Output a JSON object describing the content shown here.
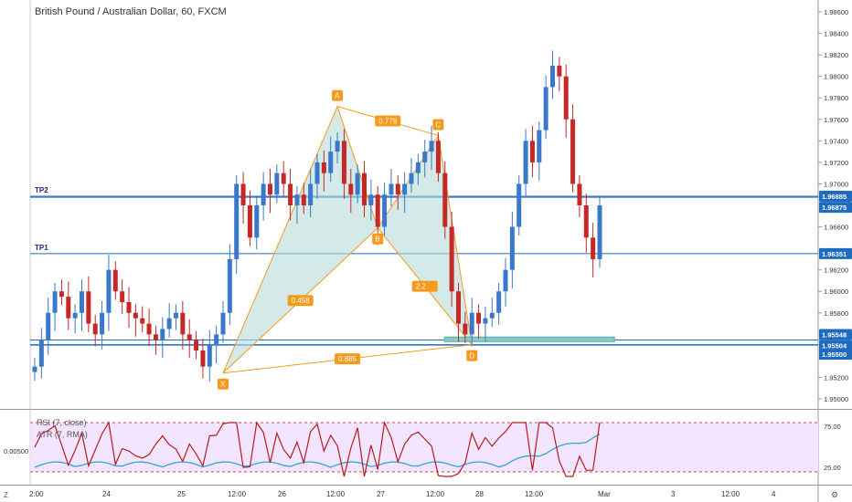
{
  "title": "British Pound / Australian Dollar, 60, FXCM",
  "indicators": {
    "rsi_label": "RSI (7, close)",
    "atr_label": "ATR (7, RMA)",
    "left_value": "0.00500",
    "right_ticks": [
      "75.00",
      "25.00"
    ],
    "corner_left": "Z",
    "corner_right": "⚙"
  },
  "price_axis": {
    "ticks": [
      "1.98600",
      "1.98400",
      "1.98200",
      "1.98000",
      "1.97800",
      "1.97600",
      "1.97400",
      "1.97200",
      "1.97000",
      "1.96600",
      "1.96200",
      "1.96000",
      "1.95800",
      "1.95200",
      "1.95000"
    ],
    "tick_values": [
      1.986,
      1.984,
      1.982,
      1.98,
      1.978,
      1.976,
      1.974,
      1.972,
      1.97,
      1.966,
      1.962,
      1.96,
      1.958,
      1.952,
      1.95
    ],
    "badges": [
      {
        "label": "1.96885",
        "value": 1.96885
      },
      {
        "label": "1.96875",
        "value": 1.96875
      },
      {
        "label": "1.96351",
        "value": 1.96351
      },
      {
        "label": "1.95548",
        "value": 1.95548
      },
      {
        "label": "1.95504",
        "value": 1.95504
      },
      {
        "label": "1.95500",
        "value": 1.955
      }
    ]
  },
  "time_axis": [
    "2:00",
    "24",
    "25",
    "12:00",
    "26",
    "12:00",
    "27",
    "12:00",
    "28",
    "12:00",
    "Mar",
    "3",
    "12:00",
    "4"
  ],
  "levels": [
    {
      "label": "TP2",
      "value": 1.96885
    },
    {
      "label": "TP1",
      "value": 1.96351
    }
  ],
  "pattern": {
    "points": [
      {
        "label": "X",
        "t": 28,
        "p": 1.9524
      },
      {
        "label": "A",
        "t": 45,
        "p": 1.9772
      },
      {
        "label": "B",
        "t": 51,
        "p": 1.9659
      },
      {
        "label": "C",
        "t": 60,
        "p": 1.9745
      },
      {
        "label": "D",
        "t": 65,
        "p": 1.95504
      }
    ],
    "ratios": [
      "0.458",
      "0.778",
      "2.2",
      "0.885"
    ]
  },
  "colors": {
    "up": "#3a78c9",
    "down": "#c62828",
    "pattern": "#f59a1c",
    "fill": "#b5dcd8",
    "line": "#1f6bbf",
    "rsi": "#b71c1c",
    "atr": "#2fa8d4",
    "band": "#f3e5ff"
  },
  "chart_data": {
    "type": "candlestick",
    "symbol": "British Pound / Australian Dollar",
    "interval": "60",
    "source": "FXCM",
    "ohlc_approx_close": [
      1.953,
      1.9555,
      1.958,
      1.96,
      1.9595,
      1.9575,
      1.958,
      1.96,
      1.957,
      1.956,
      1.958,
      1.962,
      1.96,
      1.959,
      1.958,
      1.9575,
      1.957,
      1.956,
      1.9555,
      1.9565,
      1.9575,
      1.958,
      1.956,
      1.9555,
      1.9545,
      1.953,
      1.955,
      1.956,
      1.958,
      1.963,
      1.97,
      1.968,
      1.965,
      1.968,
      1.97,
      1.969,
      1.971,
      1.97,
      1.968,
      1.969,
      1.968,
      1.97,
      1.972,
      1.971,
      1.973,
      1.974,
      1.97,
      1.969,
      1.971,
      1.968,
      1.969,
      1.966,
      1.969,
      1.97,
      1.969,
      1.97,
      1.971,
      1.972,
      1.973,
      1.974,
      1.971,
      1.966,
      1.96,
      1.957,
      1.956,
      1.958,
      1.957,
      1.9575,
      1.958,
      1.96,
      1.962,
      1.966,
      1.97,
      1.974,
      1.972,
      1.975,
      1.979,
      1.981,
      1.98,
      1.976,
      1.97,
      1.968,
      1.965,
      1.963,
      1.968
    ]
  }
}
